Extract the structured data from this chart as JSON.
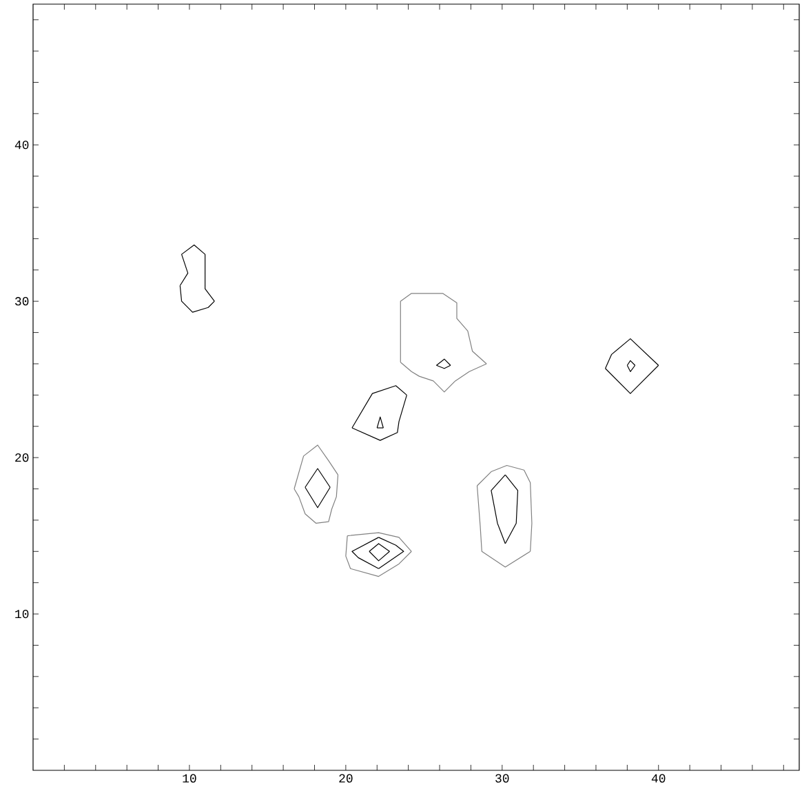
{
  "chart_data": {
    "type": "line",
    "xlim": [
      0,
      49
    ],
    "ylim": [
      0,
      49
    ],
    "xticks": [
      {
        "value": 2,
        "label": null
      },
      {
        "value": 4,
        "label": null
      },
      {
        "value": 6,
        "label": null
      },
      {
        "value": 8,
        "label": null
      },
      10,
      {
        "value": 12,
        "label": null
      },
      {
        "value": 14,
        "label": null
      },
      {
        "value": 16,
        "label": null
      },
      {
        "value": 18,
        "label": null
      },
      20,
      {
        "value": 22,
        "label": null
      },
      {
        "value": 24,
        "label": null
      },
      {
        "value": 26,
        "label": null
      },
      {
        "value": 28,
        "label": null
      },
      30,
      {
        "value": 32,
        "label": null
      },
      {
        "value": 34,
        "label": null
      },
      {
        "value": 36,
        "label": null
      },
      {
        "value": 38,
        "label": null
      },
      40,
      {
        "value": 42,
        "label": null
      },
      {
        "value": 44,
        "label": null
      },
      {
        "value": 46,
        "label": null
      },
      {
        "value": 48,
        "label": null
      }
    ],
    "yticks": [
      {
        "value": 2,
        "label": null
      },
      {
        "value": 4,
        "label": null
      },
      {
        "value": 6,
        "label": null
      },
      {
        "value": 8,
        "label": null
      },
      10,
      {
        "value": 12,
        "label": null
      },
      {
        "value": 14,
        "label": null
      },
      {
        "value": 16,
        "label": null
      },
      {
        "value": 18,
        "label": null
      },
      20,
      {
        "value": 22,
        "label": null
      },
      {
        "value": 24,
        "label": null
      },
      {
        "value": 26,
        "label": null
      },
      {
        "value": 28,
        "label": null
      },
      30,
      {
        "value": 32,
        "label": null
      },
      {
        "value": 34,
        "label": null
      },
      {
        "value": 36,
        "label": null
      },
      {
        "value": 38,
        "label": null
      },
      40,
      {
        "value": 42,
        "label": null
      },
      {
        "value": 44,
        "label": null
      },
      {
        "value": 46,
        "label": null
      },
      {
        "value": 48,
        "label": null
      }
    ],
    "series": [
      {
        "color": "#000000",
        "x": [
          9.4,
          9.9,
          9.5,
          10.3,
          11.0,
          11.0,
          11.6
        ],
        "values": [
          31.0,
          31.8,
          33.0,
          33.6,
          33.0,
          30.8,
          30.0
        ]
      },
      {
        "color": "#000000",
        "x": [
          11.6,
          11.2,
          10.2,
          9.5,
          9.4
        ],
        "values": [
          30.0,
          29.6,
          29.3,
          30.0,
          31.0
        ]
      },
      {
        "color": "#808080",
        "x": [
          23.5,
          23.5,
          24.2,
          26.2,
          27.1,
          27.1,
          27.8,
          28.1,
          29.0
        ],
        "values": [
          26.1,
          30.0,
          30.5,
          30.5,
          29.9,
          28.9,
          28.1,
          26.8,
          26.0
        ]
      },
      {
        "color": "#808080",
        "x": [
          29.0,
          27.9,
          27.0,
          26.3,
          25.6,
          24.7,
          24.2,
          23.5
        ],
        "values": [
          26.0,
          25.5,
          24.9,
          24.2,
          24.9,
          25.2,
          25.5,
          26.1
        ]
      },
      {
        "color": "#000000",
        "x": [
          25.8,
          26.3,
          26.7
        ],
        "values": [
          25.9,
          26.3,
          25.9
        ]
      },
      {
        "color": "#000000",
        "x": [
          26.7,
          26.3,
          25.8
        ],
        "values": [
          25.9,
          25.7,
          25.9
        ]
      },
      {
        "color": "#000000",
        "x": [
          20.4,
          21.7,
          23.2,
          23.9
        ],
        "values": [
          21.9,
          24.1,
          24.6,
          24.0
        ]
      },
      {
        "color": "#000000",
        "x": [
          23.9,
          23.4,
          23.3,
          22.2,
          20.4
        ],
        "values": [
          24.0,
          22.3,
          21.6,
          21.1,
          21.9
        ]
      },
      {
        "color": "#000000",
        "x": [
          22.0,
          22.2,
          22.4
        ],
        "values": [
          21.9,
          22.6,
          21.9
        ]
      },
      {
        "color": "#000000",
        "x": [
          22.4,
          22.0
        ],
        "values": [
          21.9,
          21.9
        ]
      },
      {
        "color": "#000000",
        "x": [
          36.6,
          37.0,
          38.2,
          40.0
        ],
        "values": [
          25.7,
          26.6,
          27.6,
          25.9
        ]
      },
      {
        "color": "#000000",
        "x": [
          40.0,
          38.2,
          36.6
        ],
        "values": [
          25.9,
          24.1,
          25.7
        ]
      },
      {
        "color": "#000000",
        "x": [
          38.0,
          38.2,
          38.5
        ],
        "values": [
          25.9,
          26.2,
          25.9
        ]
      },
      {
        "color": "#000000",
        "x": [
          38.5,
          38.2,
          38.0
        ],
        "values": [
          25.9,
          25.5,
          25.9
        ]
      },
      {
        "color": "#808080",
        "x": [
          16.7,
          17.3,
          18.2,
          18.9,
          19.5
        ],
        "values": [
          18.0,
          20.1,
          20.8,
          19.8,
          18.9
        ]
      },
      {
        "color": "#808080",
        "x": [
          19.5,
          19.4,
          19.1,
          18.9,
          18.1,
          17.4,
          17.0,
          16.7
        ],
        "values": [
          18.9,
          17.5,
          16.7,
          15.9,
          15.8,
          16.4,
          17.5,
          18.0
        ]
      },
      {
        "color": "#000000",
        "x": [
          17.4,
          18.2,
          19.0
        ],
        "values": [
          18.1,
          19.3,
          18.1
        ]
      },
      {
        "color": "#000000",
        "x": [
          19.0,
          18.2,
          17.4
        ],
        "values": [
          18.1,
          16.8,
          18.1
        ]
      },
      {
        "color": "#808080",
        "x": [
          20.1,
          22.1,
          23.4,
          24.2
        ],
        "values": [
          15.0,
          15.2,
          14.9,
          14.0
        ]
      },
      {
        "color": "#808080",
        "x": [
          24.2,
          23.4,
          22.1,
          20.3,
          20.0,
          20.1
        ],
        "values": [
          14.0,
          13.2,
          12.4,
          12.9,
          13.7,
          15.0
        ]
      },
      {
        "color": "#000000",
        "x": [
          22.1,
          23.2,
          23.7,
          22.1
        ],
        "values": [
          14.9,
          14.4,
          14.0,
          12.9
        ]
      },
      {
        "color": "#000000",
        "x": [
          22.1,
          20.8,
          20.4,
          22.1
        ],
        "values": [
          12.9,
          13.6,
          14.0,
          14.9
        ]
      },
      {
        "color": "#000000",
        "x": [
          21.5,
          22.1,
          22.8
        ],
        "values": [
          14.0,
          14.5,
          14.0
        ]
      },
      {
        "color": "#000000",
        "x": [
          22.8,
          22.1,
          21.5
        ],
        "values": [
          14.0,
          13.4,
          14.0
        ]
      },
      {
        "color": "#808080",
        "x": [
          28.4,
          29.3,
          30.3,
          31.4,
          31.8,
          31.9,
          31.8
        ],
        "values": [
          18.2,
          19.1,
          19.5,
          19.2,
          18.4,
          15.8,
          14.0
        ]
      },
      {
        "color": "#808080",
        "x": [
          31.8,
          30.2,
          28.7,
          28.6,
          28.4
        ],
        "values": [
          14.0,
          13.0,
          14.0,
          15.6,
          18.2
        ]
      },
      {
        "color": "#000000",
        "x": [
          30.2,
          31.0,
          30.9,
          30.2
        ],
        "values": [
          18.9,
          17.9,
          15.8,
          14.5
        ]
      },
      {
        "color": "#000000",
        "x": [
          30.2,
          29.7,
          29.3,
          30.2
        ],
        "values": [
          14.5,
          15.8,
          17.9,
          18.9
        ]
      }
    ]
  }
}
